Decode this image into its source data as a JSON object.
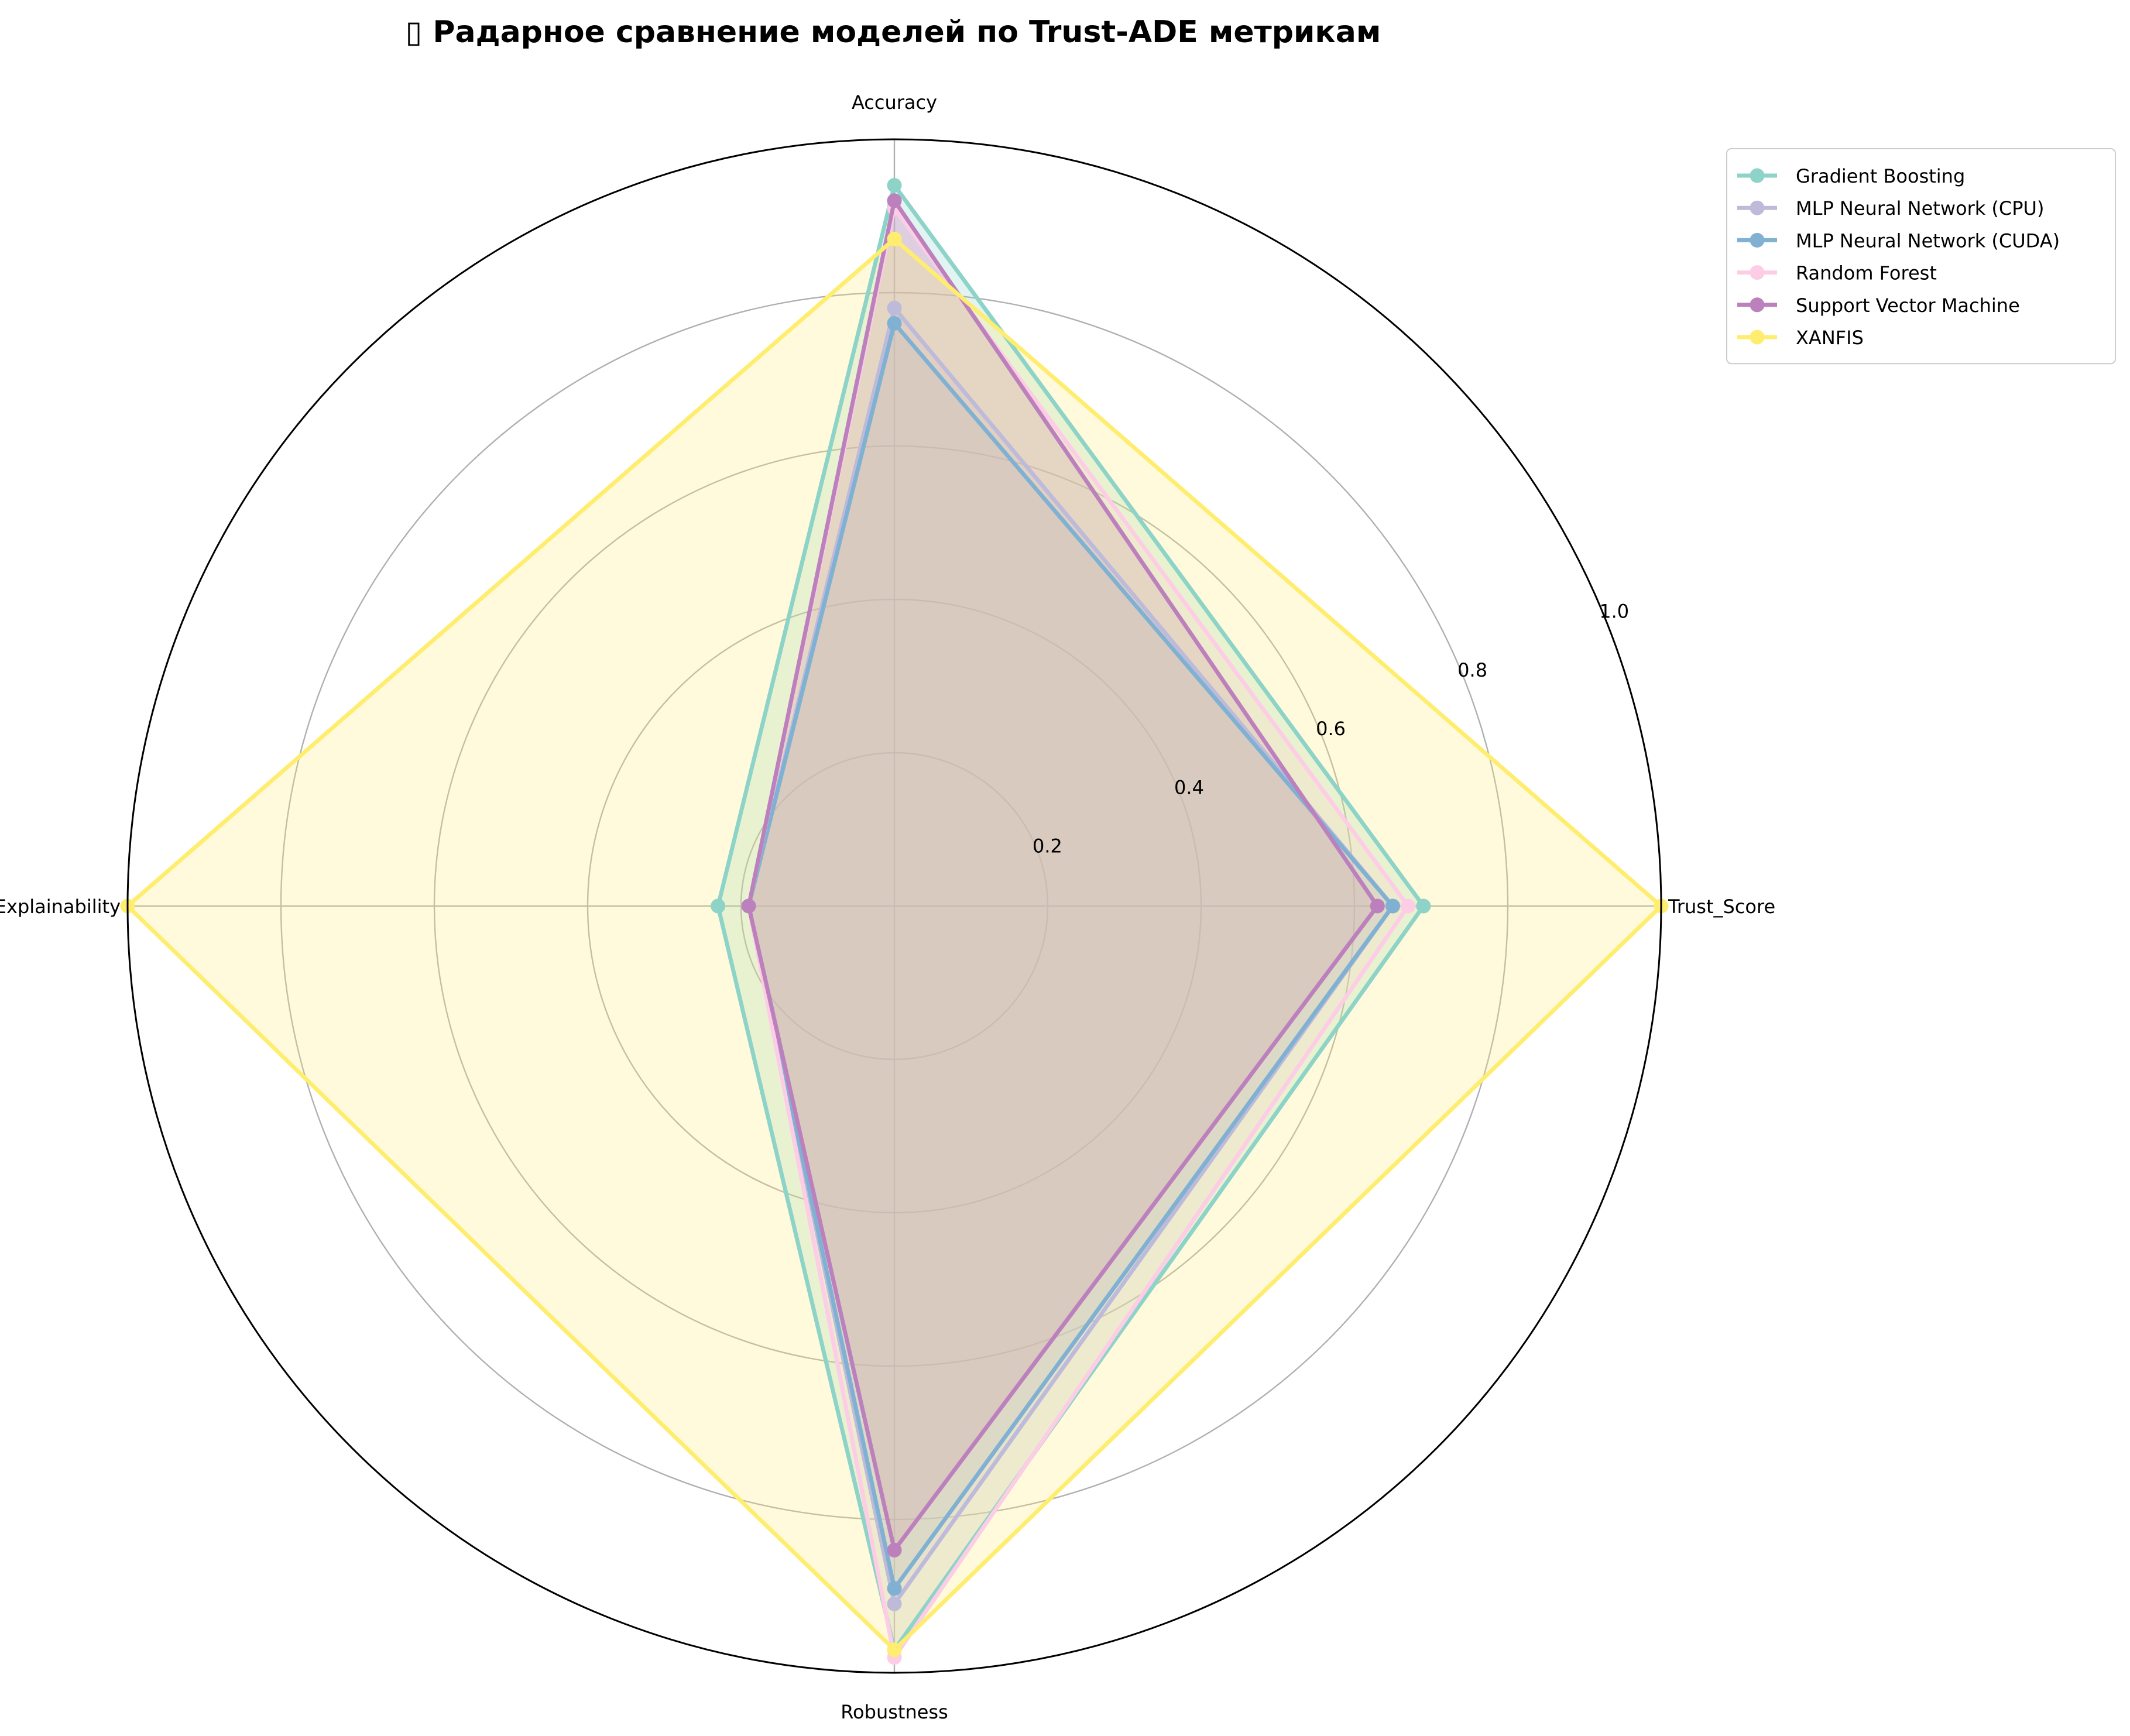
{
  "chart_data": {
    "type": "radar",
    "title": "▯ Радарное сравнение моделей по Trust-ADE метрикам",
    "axes": [
      "Trust_Score",
      "Accuracy",
      "Explainability",
      "Robustness"
    ],
    "rlim": [
      0,
      1.0
    ],
    "rticks": [
      0.2,
      0.4,
      0.6,
      0.8,
      1.0
    ],
    "rtick_labels": [
      "0.2",
      "0.4",
      "0.6",
      "0.8",
      "1.0"
    ],
    "grid": true,
    "legend_position": "upper-right outside",
    "series": [
      {
        "name": "Gradient Boosting",
        "color": "#8dd3c7",
        "values": [
          0.69,
          0.94,
          0.23,
          0.97
        ]
      },
      {
        "name": "MLP Neural Network (CPU)",
        "color": "#bebada",
        "values": [
          0.65,
          0.78,
          0.19,
          0.91
        ]
      },
      {
        "name": "MLP Neural Network (CUDA)",
        "color": "#80b1d3",
        "values": [
          0.65,
          0.76,
          0.19,
          0.89
        ]
      },
      {
        "name": "Random Forest",
        "color": "#fccde5",
        "values": [
          0.67,
          0.91,
          0.19,
          0.98
        ]
      },
      {
        "name": "Support Vector Machine",
        "color": "#bc80bd",
        "values": [
          0.63,
          0.92,
          0.19,
          0.84
        ]
      },
      {
        "name": "XANFIS",
        "color": "#ffed6f",
        "values": [
          1.0,
          0.87,
          1.0,
          0.97
        ]
      }
    ]
  }
}
